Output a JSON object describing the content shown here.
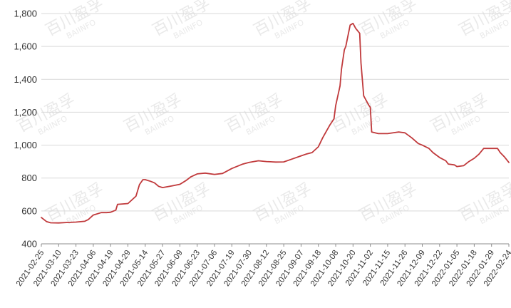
{
  "chart_data": {
    "type": "line",
    "title": "",
    "xlabel": "",
    "ylabel": "",
    "ylim": [
      400,
      1800
    ],
    "yticks": [
      400,
      600,
      800,
      1000,
      1200,
      1400,
      1600,
      1800
    ],
    "ytick_labels": [
      "400",
      "600",
      "800",
      "1,000",
      "1,200",
      "1,400",
      "1,600",
      "1,800"
    ],
    "xticks": [
      "2021-02-25",
      "2021-03-10",
      "2021-03-23",
      "2021-04-06",
      "2021-04-19",
      "2021-04-29",
      "2021-05-14",
      "2021-05-27",
      "2021-06-09",
      "2021-06-23",
      "2021-07-06",
      "2021-07-19",
      "2021-07-30",
      "2021-08-12",
      "2021-08-25",
      "2021-09-07",
      "2021-09-18",
      "2021-10-08",
      "2021-10-20",
      "2021-11-02",
      "2021-11-15",
      "2021-11-26",
      "2021-12-09",
      "2021-12-22",
      "2022-01-05",
      "2022-01-18",
      "2022-01-29",
      "2022-02-24"
    ],
    "grid": true,
    "line_color": "#c0393b",
    "watermark": [
      "百川盈孚",
      "BAIINFO"
    ],
    "series": [
      {
        "x": [
          "2021-02-25",
          "2021-03-01",
          "2021-03-04",
          "2021-03-10",
          "2021-03-17",
          "2021-03-23",
          "2021-03-30",
          "2021-04-02",
          "2021-04-06",
          "2021-04-12",
          "2021-04-16",
          "2021-04-19",
          "2021-04-22",
          "2021-04-23",
          "2021-04-29",
          "2021-05-06",
          "2021-05-09",
          "2021-05-12",
          "2021-05-14",
          "2021-05-18",
          "2021-05-21",
          "2021-05-24",
          "2021-05-27",
          "2021-06-03",
          "2021-06-09",
          "2021-06-14",
          "2021-06-18",
          "2021-06-23",
          "2021-06-29",
          "2021-07-06",
          "2021-07-12",
          "2021-07-19",
          "2021-07-26",
          "2021-07-30",
          "2021-08-06",
          "2021-08-12",
          "2021-08-19",
          "2021-08-25",
          "2021-08-31",
          "2021-09-07",
          "2021-09-10",
          "2021-09-14",
          "2021-09-18",
          "2021-09-23",
          "2021-10-01",
          "2021-10-06",
          "2021-10-08",
          "2021-10-11",
          "2021-10-12",
          "2021-10-14",
          "2021-10-15",
          "2021-10-18",
          "2021-10-20",
          "2021-10-22",
          "2021-10-25",
          "2021-10-26",
          "2021-10-28",
          "2021-11-01",
          "2021-11-02",
          "2021-11-03",
          "2021-11-08",
          "2021-11-15",
          "2021-11-22",
          "2021-11-26",
          "2021-12-01",
          "2021-12-06",
          "2021-12-09",
          "2021-12-14",
          "2021-12-17",
          "2021-12-22",
          "2021-12-27",
          "2021-12-29",
          "2022-01-03",
          "2022-01-05",
          "2022-01-10",
          "2022-01-14",
          "2022-01-18",
          "2022-01-21",
          "2022-01-24",
          "2022-01-29",
          "2022-02-07",
          "2022-02-11",
          "2022-02-17",
          "2022-02-21",
          "2022-02-24"
        ],
        "y": [
          560,
          535,
          528,
          527,
          530,
          532,
          537,
          548,
          575,
          590,
          590,
          592,
          605,
          640,
          645,
          690,
          760,
          790,
          790,
          780,
          770,
          750,
          742,
          752,
          762,
          785,
          808,
          825,
          830,
          822,
          828,
          858,
          885,
          895,
          905,
          900,
          897,
          898,
          915,
          935,
          945,
          955,
          990,
          1045,
          1120,
          1160,
          1240,
          1360,
          1460,
          1580,
          1600,
          1730,
          1740,
          1710,
          1680,
          1500,
          1300,
          1240,
          1230,
          1080,
          1070,
          1070,
          1080,
          1075,
          1045,
          1010,
          1000,
          980,
          955,
          925,
          905,
          885,
          880,
          870,
          875,
          900,
          920,
          945,
          980,
          980,
          980,
          955,
          930,
          910,
          895
        ]
      }
    ]
  }
}
